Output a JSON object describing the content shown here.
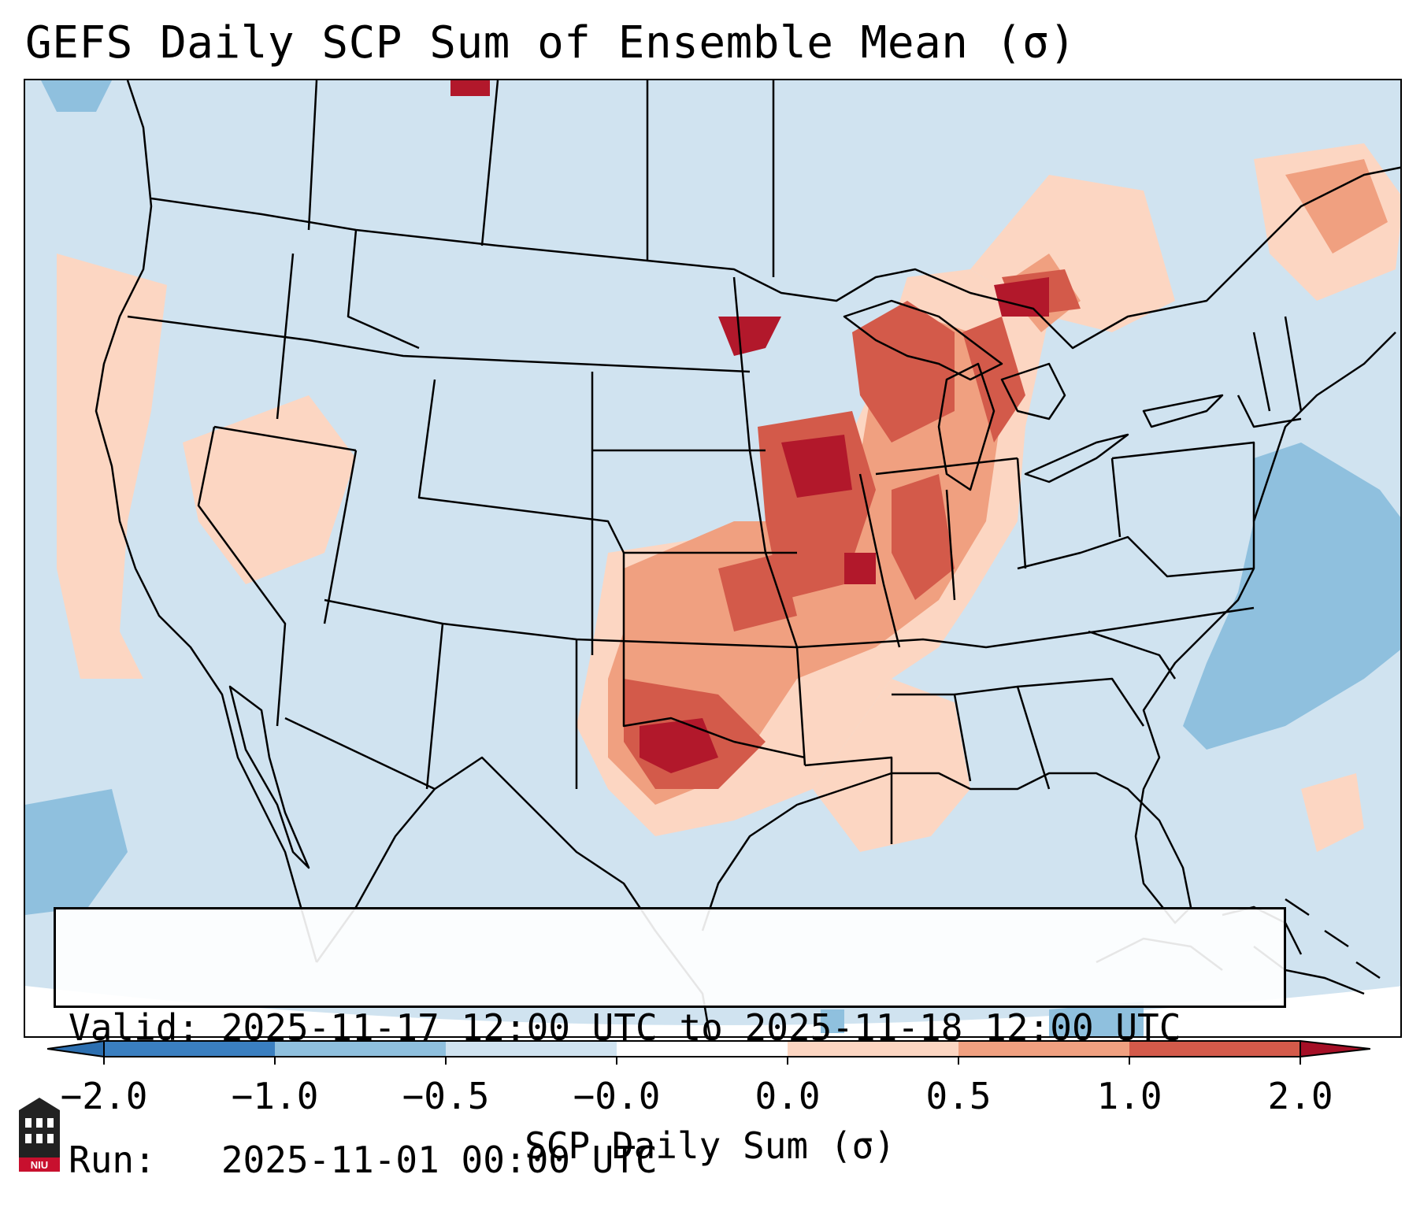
{
  "title": "GEFS Daily SCP Sum of Ensemble Mean (σ)",
  "info": {
    "valid_line": "Valid: 2025-11-17 12:00 UTC to 2025-11-18 12:00 UTC",
    "run_line": "Run:   2025-11-01 00:00 UTC"
  },
  "colorbar": {
    "label": "SCP Daily Sum (σ)",
    "ticks": [
      "−2.0",
      "−1.0",
      "−0.5",
      "−0.0",
      "0.0",
      "0.5",
      "1.0",
      "2.0"
    ],
    "colors": [
      "#3a7fc0",
      "#8fc0de",
      "#d0e3f0",
      "#fcd6c2",
      "#f0a080",
      "#d35a4a",
      "#b2182b"
    ],
    "extend_low": "#2c6fb0",
    "extend_high": "#a50f26"
  },
  "logo": {
    "text": "NIU"
  }
}
